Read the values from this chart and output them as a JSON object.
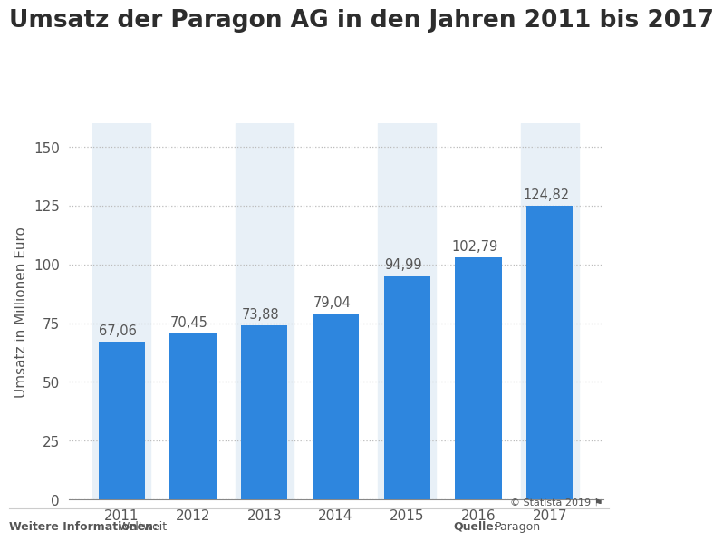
{
  "title": "Umsatz der Paragon AG in den Jahren 2011 bis 2017",
  "years": [
    "2011",
    "2012",
    "2013",
    "2014",
    "2015",
    "2016",
    "2017"
  ],
  "values": [
    67.06,
    70.45,
    73.88,
    79.04,
    94.99,
    102.79,
    124.82
  ],
  "bar_color": "#2e86de",
  "bar_highlight_indices": [
    0,
    2,
    4,
    6
  ],
  "highlight_color": "#e8f0f7",
  "ylabel": "Umsatz in Millionen Euro",
  "ylim": [
    0,
    160
  ],
  "yticks": [
    0,
    25,
    50,
    75,
    100,
    125,
    150
  ],
  "title_fontsize": 19,
  "title_color": "#2d2d2d",
  "tick_color": "#555555",
  "label_fontsize": 11,
  "value_fontsize": 10.5,
  "grid_color": "#bbbbbb",
  "footer_left_bold": "Weitere Informationen:",
  "footer_left_normal": " Weltweit",
  "footer_right_bold": "Quelle:",
  "footer_right_normal": " Paragon",
  "footer_statista": "© Statista 2019",
  "background_color": "#ffffff",
  "plot_bg_color": "#ffffff"
}
